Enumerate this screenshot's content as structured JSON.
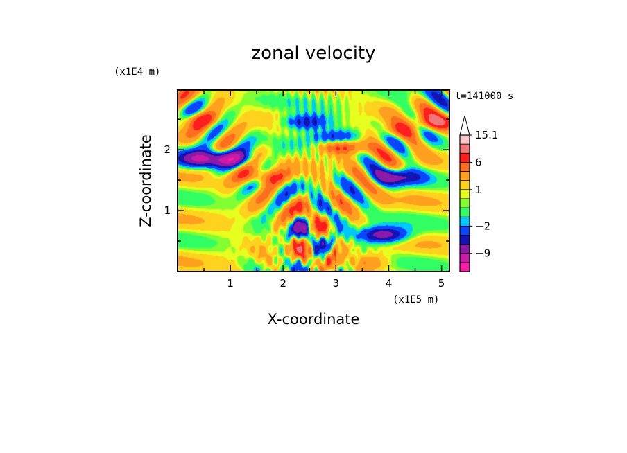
{
  "chart_data": {
    "type": "heatmap",
    "title": "zonal velocity",
    "xlabel": "X-coordinate",
    "ylabel": "Z-coordinate",
    "x_unit": "(x1E5 m)",
    "y_unit": "(x1E4 m)",
    "time_label": "t=141000 s",
    "xlim": [
      0,
      5.15
    ],
    "ylim": [
      0,
      2.98
    ],
    "x_ticks": [
      1,
      2,
      3,
      4,
      5
    ],
    "y_ticks": [
      1,
      2
    ],
    "colorbar": {
      "levels": [
        -15,
        -12,
        -9,
        -6,
        -4,
        -2,
        -1,
        0,
        0.5,
        1,
        2,
        4,
        6,
        9,
        12,
        15.1
      ],
      "colors": [
        "#ff1aa8",
        "#cc1aa8",
        "#8c1aa8",
        "#1414b4",
        "#0a46ff",
        "#00c8ff",
        "#32ff64",
        "#82ff32",
        "#e6ff1e",
        "#ffd21e",
        "#ffa01e",
        "#ff6e1e",
        "#ff1e1e",
        "#f07878",
        "#ffc8c8"
      ],
      "labels": [
        {
          "text": "15.1",
          "value": 15.1
        },
        {
          "text": "6",
          "value": 6
        },
        {
          "text": "1",
          "value": 1
        },
        {
          "text": "−2",
          "value": -2
        },
        {
          "text": "−9",
          "value": -9
        }
      ],
      "extend": "max"
    },
    "features": [
      {
        "x": 0.45,
        "z": 1.85,
        "u": -9
      },
      {
        "x": 1.05,
        "z": 1.85,
        "u": -7
      },
      {
        "x": 2.45,
        "z": 2.45,
        "u": -7
      },
      {
        "x": 4.2,
        "z": 1.55,
        "u": -7
      },
      {
        "x": 3.9,
        "z": 0.6,
        "u": -9
      },
      {
        "x": 3.0,
        "z": 2.2,
        "u": -6
      },
      {
        "x": 0.35,
        "z": 2.5,
        "u": 5
      },
      {
        "x": 4.85,
        "z": 2.45,
        "u": 6
      },
      {
        "x": 4.15,
        "z": 2.3,
        "u": 4
      },
      {
        "x": 1.6,
        "z": 1.55,
        "u": 6
      },
      {
        "x": 3.1,
        "z": 2.05,
        "u": 7
      },
      {
        "x": 3.6,
        "z": 0.15,
        "u": 3
      }
    ]
  }
}
